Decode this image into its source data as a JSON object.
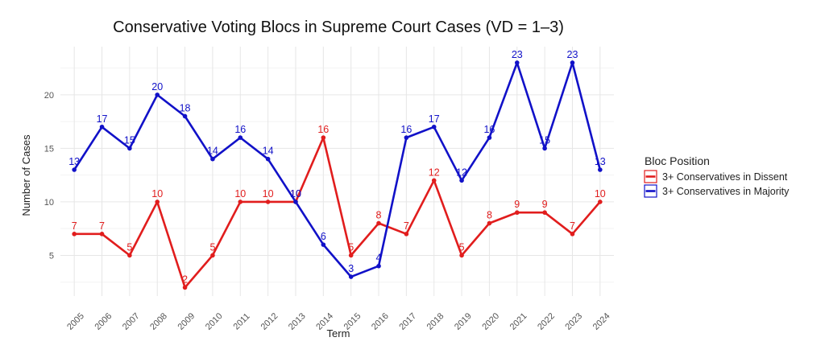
{
  "chart_data": {
    "type": "line",
    "title": "Conservative Voting Blocs in Supreme Court Cases (VD = 1–3)",
    "xlabel": "Term",
    "ylabel": "Number of Cases",
    "categories": [
      "2005",
      "2006",
      "2007",
      "2008",
      "2009",
      "2010",
      "2011",
      "2012",
      "2013",
      "2014",
      "2015",
      "2016",
      "2017",
      "2018",
      "2019",
      "2020",
      "2021",
      "2022",
      "2023",
      "2024"
    ],
    "ylim": [
      1.2,
      24.5
    ],
    "yticks": [
      5,
      10,
      15,
      20
    ],
    "grid": true,
    "legend": {
      "title": "Bloc Position",
      "position": "right"
    },
    "series": [
      {
        "name": "3+ Conservatives in Dissent",
        "color": "#e11d1d",
        "values": [
          7,
          7,
          5,
          10,
          2,
          5,
          10,
          10,
          10,
          16,
          5,
          8,
          7,
          12,
          5,
          8,
          9,
          9,
          7,
          10
        ]
      },
      {
        "name": "3+ Conservatives in Majority",
        "color": "#1111c8",
        "values": [
          13,
          17,
          15,
          20,
          18,
          14,
          16,
          14,
          10,
          6,
          3,
          4,
          16,
          17,
          12,
          16,
          23,
          15,
          23,
          13
        ]
      }
    ]
  }
}
